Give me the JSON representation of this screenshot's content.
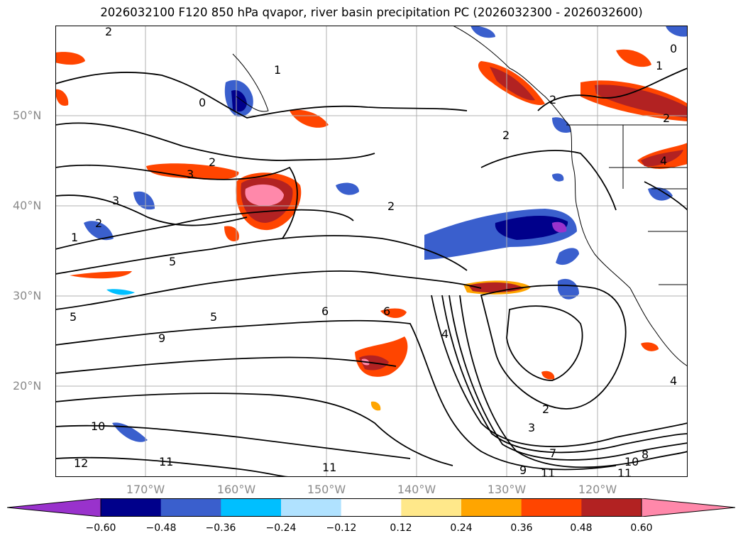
{
  "title": "2026032100 F120 850 hPa qvapor, river basin precipitation PC (2026032300 - 2026032600)",
  "lat_labels": [
    "50°N",
    "40°N",
    "30°N",
    "20°N"
  ],
  "lon_labels": [
    "170°W",
    "160°W",
    "150°W",
    "140°W",
    "130°W",
    "120°W"
  ],
  "contour_labels": [
    "2",
    "0",
    "1",
    "2",
    "3",
    "2",
    "3",
    "2",
    "1",
    "5",
    "5",
    "9",
    "6",
    "5",
    "6",
    "4",
    "2",
    "3",
    "10",
    "11",
    "12",
    "11",
    "7",
    "8",
    "9",
    "10",
    "11",
    "11",
    "4",
    "2",
    "2",
    "0",
    "1",
    "2",
    "4"
  ],
  "colorbar": {
    "ticks": [
      "−0.60",
      "−0.48",
      "−0.36",
      "−0.24",
      "−0.12",
      "0.12",
      "0.24",
      "0.36",
      "0.48",
      "0.60"
    ],
    "colors": [
      "#9932cc",
      "#00008b",
      "#3a5fcd",
      "#00bfff",
      "#b0e2ff",
      "#ffffff",
      "#ffe88a",
      "#ffa500",
      "#ff4500",
      "#b22222",
      "#ff88aa"
    ]
  },
  "colors": {
    "contour": "#000000",
    "grid": "#b0b0b0",
    "tick_text": "#8a8a8a"
  }
}
